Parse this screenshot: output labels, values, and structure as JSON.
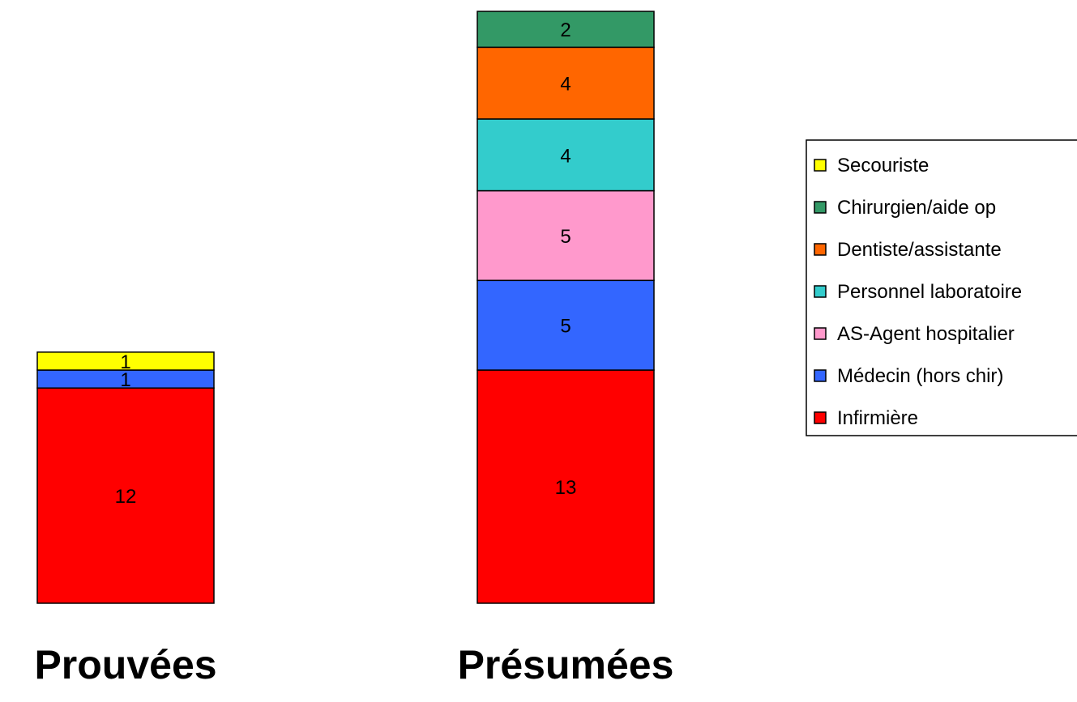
{
  "chart_data": {
    "type": "bar",
    "stacked": true,
    "categories": [
      "Prouvées",
      "Présumées"
    ],
    "series": [
      {
        "name": "Infirmière",
        "color": "#FF0000",
        "values": [
          12,
          13
        ]
      },
      {
        "name": "Médecin (hors chir)",
        "color": "#3366FF",
        "values": [
          1,
          5
        ]
      },
      {
        "name": "AS-Agent hospitalier",
        "color": "#FF99CC",
        "values": [
          0,
          5
        ]
      },
      {
        "name": "Personnel laboratoire",
        "color": "#33CCCC",
        "values": [
          0,
          4
        ]
      },
      {
        "name": "Dentiste/assistante",
        "color": "#FF6600",
        "values": [
          0,
          4
        ]
      },
      {
        "name": "Chirurgien/aide op",
        "color": "#339966",
        "values": [
          0,
          2
        ]
      },
      {
        "name": "Secouriste",
        "color": "#FFFF00",
        "values": [
          1,
          0
        ]
      }
    ],
    "legend_position": "right",
    "grid": false
  }
}
